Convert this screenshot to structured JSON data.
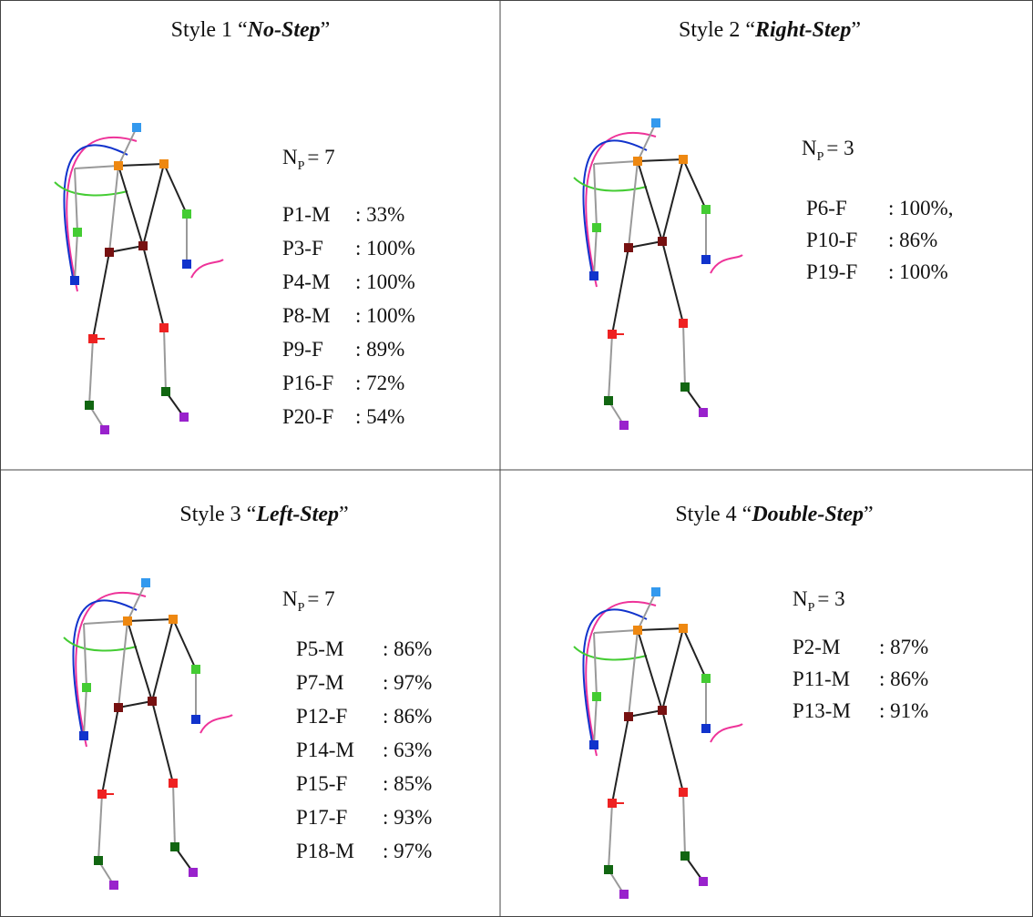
{
  "panels": [
    {
      "title": {
        "prefix": "Style 1 “",
        "emphasis": "No-Step",
        "suffix": "”"
      },
      "np": {
        "symbol": "N",
        "subscript": "P",
        "value": "= 7"
      },
      "participants": [
        {
          "id": "P1-M",
          "score": ": 33%"
        },
        {
          "id": "P3-F",
          "score": ": 100%"
        },
        {
          "id": "P4-M",
          "score": ": 100%"
        },
        {
          "id": "P8-M",
          "score": ": 100%"
        },
        {
          "id": "P9-F",
          "score": ": 89%"
        },
        {
          "id": "P16-F",
          "score": ": 72%"
        },
        {
          "id": "P20-F",
          "score": ": 54%"
        }
      ]
    },
    {
      "title": {
        "prefix": "Style 2 “",
        "emphasis": "Right-Step",
        "suffix": "”"
      },
      "np": {
        "symbol": "N",
        "subscript": "P",
        "value": "= 3"
      },
      "participants": [
        {
          "id": "P6-F",
          "score": ": 100%,"
        },
        {
          "id": "P10-F",
          "score": ": 86%"
        },
        {
          "id": "P19-F",
          "score": ": 100%"
        }
      ]
    },
    {
      "title": {
        "prefix": "Style 3 “",
        "emphasis": "Left-Step",
        "suffix": "”"
      },
      "np": {
        "symbol": "N",
        "subscript": "P",
        "value": "= 7"
      },
      "participants": [
        {
          "id": "P5-M",
          "score": ": 86%"
        },
        {
          "id": "P7-M",
          "score": ": 97%"
        },
        {
          "id": "P12-F",
          "score": ": 86%"
        },
        {
          "id": "P14-M",
          "score": ": 63%"
        },
        {
          "id": "P15-F",
          "score": ": 85%"
        },
        {
          "id": "P17-F",
          "score": ": 93%"
        },
        {
          "id": "P18-M",
          "score": ": 97%"
        }
      ]
    },
    {
      "title": {
        "prefix": "Style 4 “",
        "emphasis": "Double-Step",
        "suffix": "”"
      },
      "np": {
        "symbol": "N",
        "subscript": "P",
        "value": "= 3"
      },
      "participants": [
        {
          "id": "P2-M",
          "score": ": 87%"
        },
        {
          "id": "P11-M",
          "score": ": 86%"
        },
        {
          "id": "P13-M",
          "score": ": 91%"
        }
      ]
    }
  ]
}
